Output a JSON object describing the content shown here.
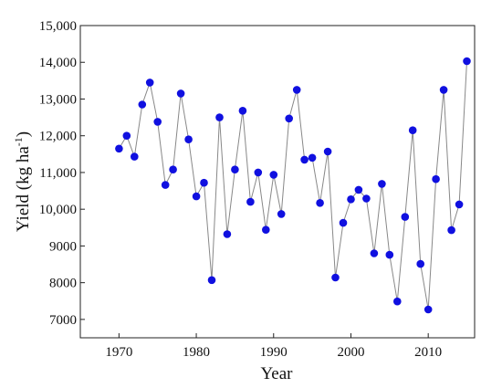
{
  "chart_data": {
    "type": "scatter",
    "xlabel": "Year",
    "ylabel_main": "Yield (kg ha",
    "ylabel_sup": "-1",
    "ylabel_end": ")",
    "xlim": [
      1965,
      2016
    ],
    "ylim": [
      6500,
      15000
    ],
    "xticks": [
      1970,
      1980,
      1990,
      2000,
      2010
    ],
    "xtick_labels": [
      "1970",
      "1980",
      "1990",
      "2000",
      "2010"
    ],
    "yticks": [
      7000,
      8000,
      9000,
      10000,
      11000,
      12000,
      13000,
      14000,
      15000
    ],
    "ytick_labels": [
      "7000",
      "8000",
      "9000",
      "10,000",
      "11,000",
      "12,000",
      "13,000",
      "14,000",
      "15,000"
    ],
    "marker_color": "#1010e0",
    "line_color": "#888888",
    "series": [
      {
        "x": [
          1970,
          1971,
          1972,
          1973,
          1974,
          1975,
          1976,
          1977,
          1978,
          1979,
          1980,
          1981,
          1982,
          1983,
          1984,
          1985,
          1986,
          1987,
          1988,
          1989,
          1990,
          1991,
          1992,
          1993,
          1994,
          1995,
          1996,
          1997,
          1998,
          1999,
          2000,
          2001,
          2002,
          2003,
          2004,
          2005,
          2006,
          2007,
          2008,
          2009,
          2010,
          2011,
          2012,
          2013,
          2014,
          2015
        ],
        "y": [
          11650,
          12000,
          11430,
          12850,
          13450,
          12380,
          10660,
          11080,
          13150,
          11900,
          10350,
          10720,
          8070,
          12500,
          9320,
          11080,
          12680,
          10200,
          11000,
          9440,
          10940,
          9870,
          12470,
          13250,
          11350,
          11400,
          10170,
          11570,
          8140,
          9630,
          10270,
          10530,
          10290,
          8800,
          10690,
          8760,
          7490,
          9790,
          12150,
          8510,
          7270,
          10820,
          13250,
          9430,
          10130,
          14030
        ]
      }
    ]
  }
}
